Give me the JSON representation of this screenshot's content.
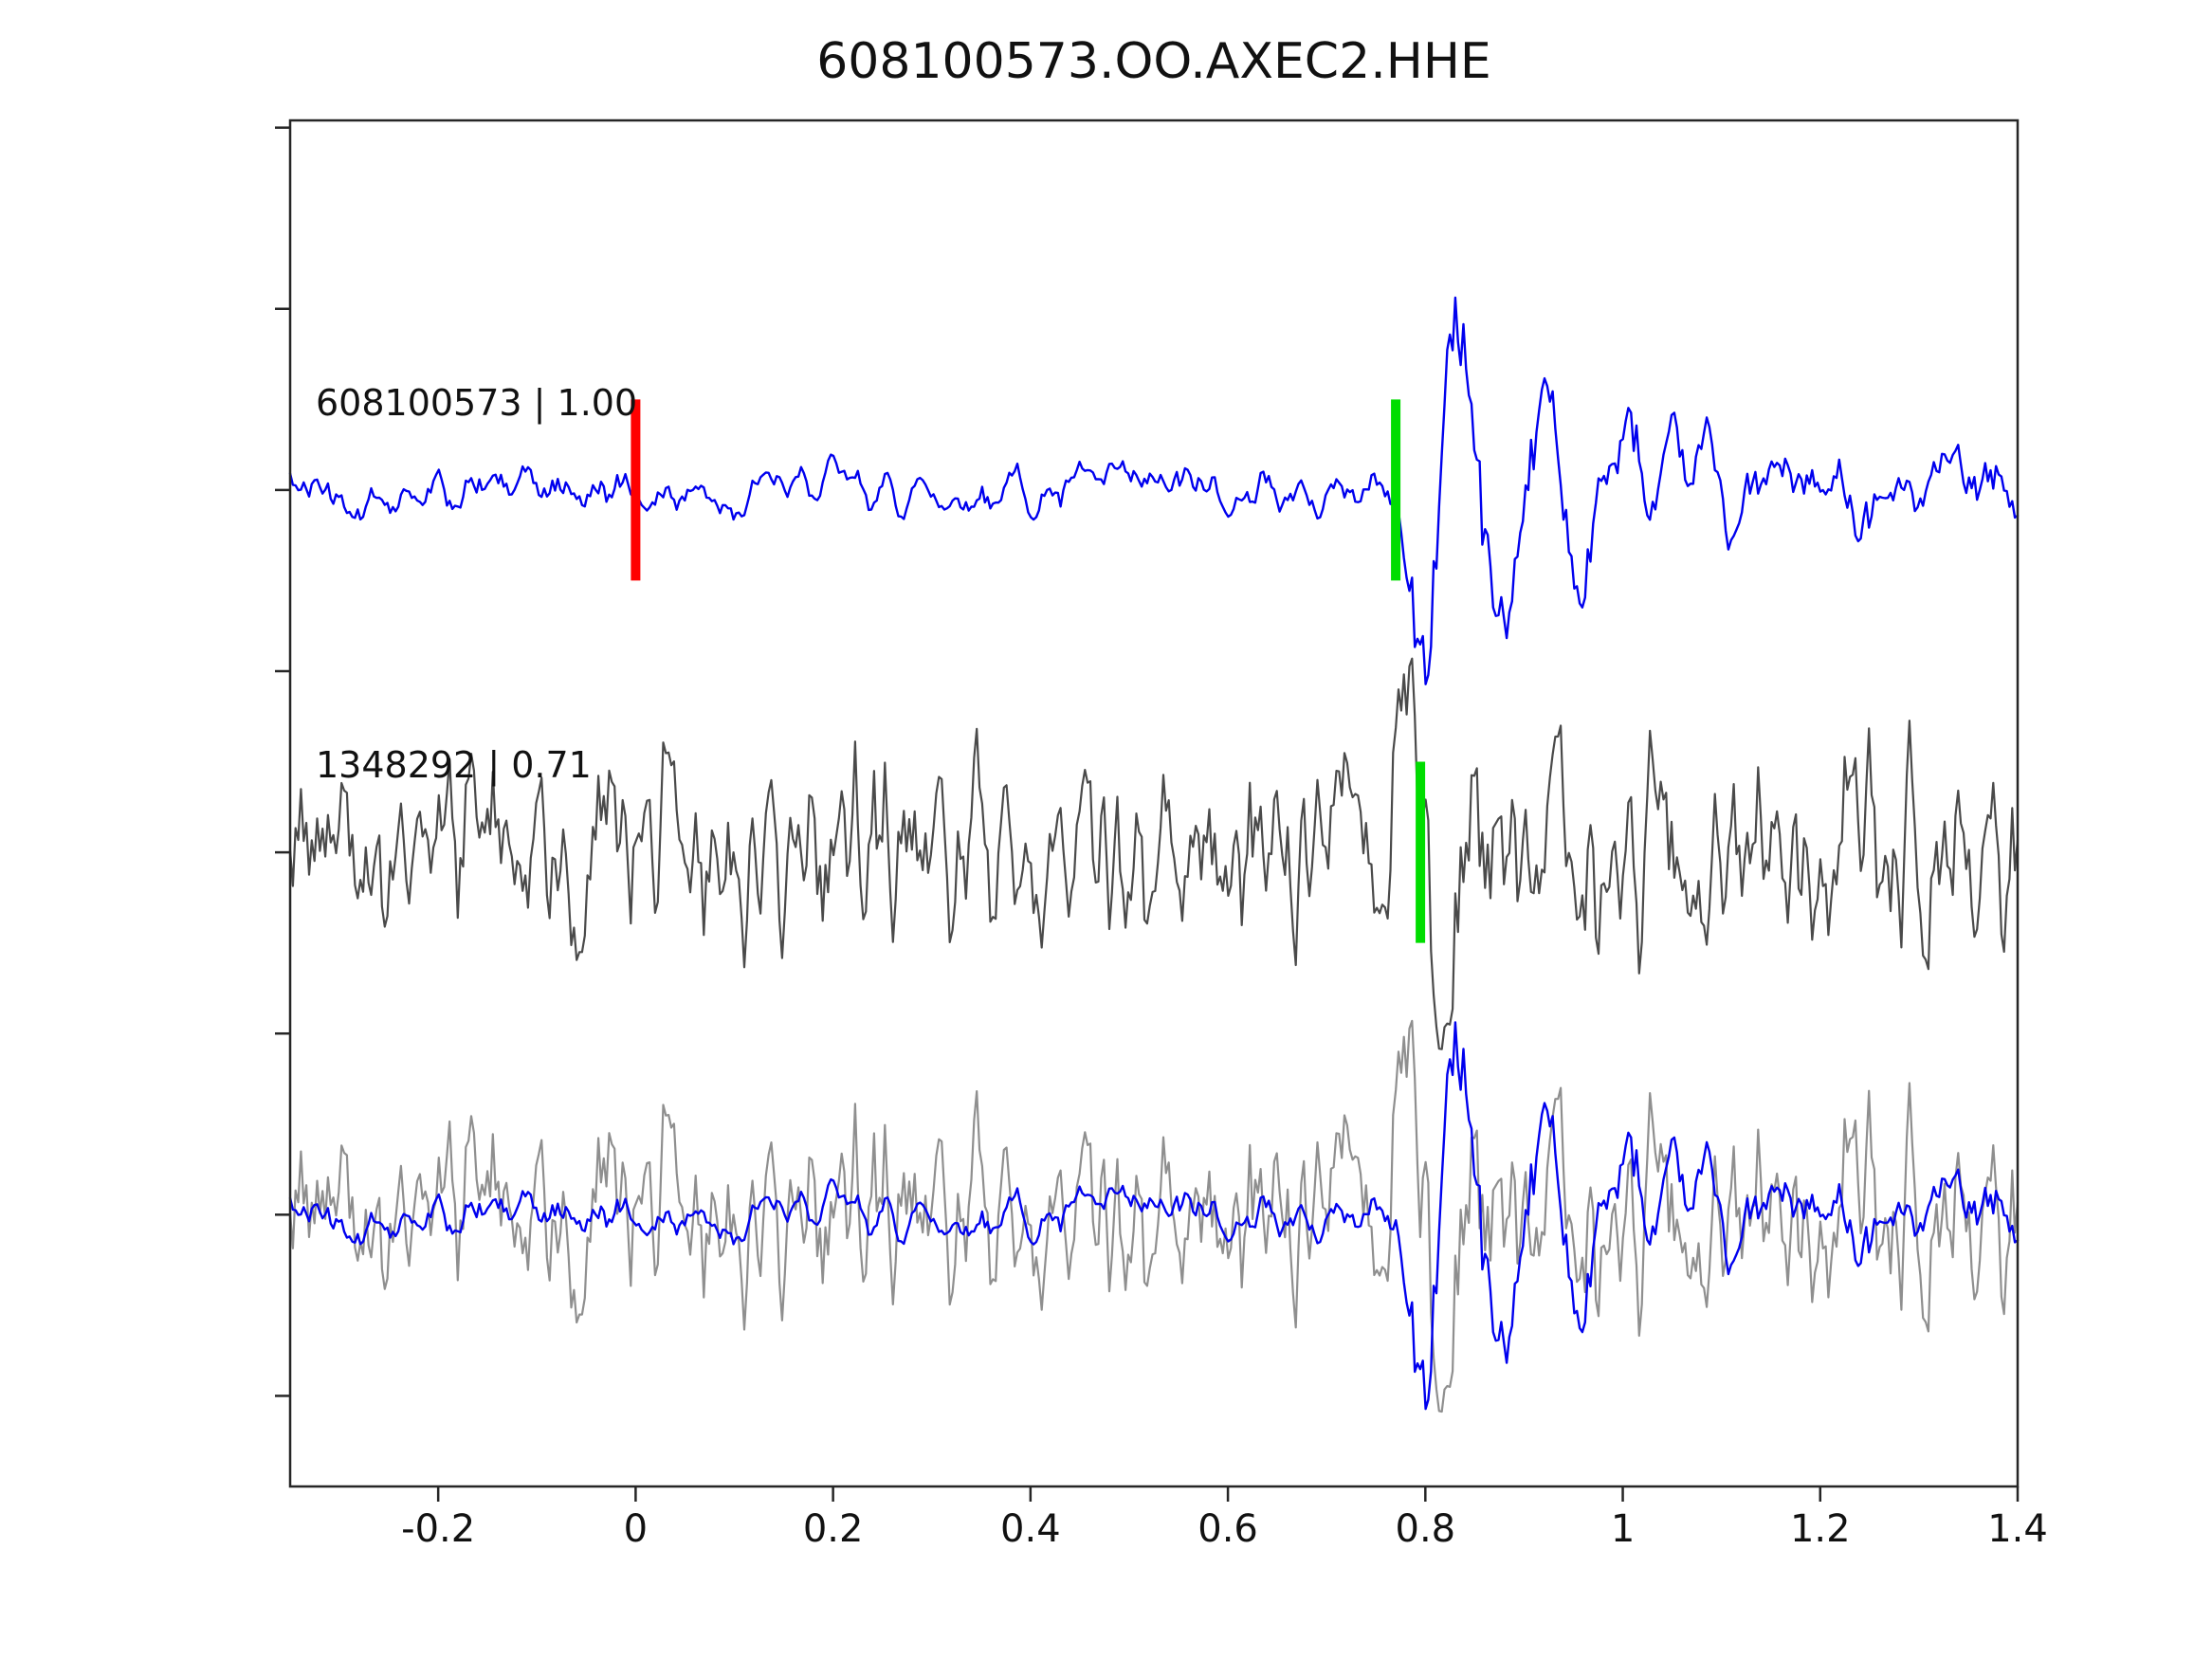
{
  "figure": {
    "background": "#ffffff",
    "spine_color": "#262626",
    "text_color": "#111111"
  },
  "chart_data": {
    "type": "line",
    "title": "608100573.OO.AXEC2.HHE",
    "xlabel": "",
    "ylabel": "",
    "xlim": [
      -0.35,
      1.4
    ],
    "ylim": [
      -0.75,
      3.02
    ],
    "xticks": [
      -0.2,
      0,
      0.2,
      0.4,
      0.6,
      0.8,
      1,
      1.2,
      1.4
    ],
    "xtick_labels": [
      "-0.2",
      "0",
      "0.2",
      "0.4",
      "0.6",
      "0.8",
      "1",
      "1.2",
      "1.4"
    ],
    "yticks": [
      -0.5,
      0,
      0.5,
      1,
      1.5,
      2,
      2.5,
      3
    ],
    "ytick_labels": [],
    "grid": false,
    "legend_position": "none",
    "rows": [
      {
        "baseline_value": 2,
        "label": "608100573 | 1.00"
      },
      {
        "baseline_value": 1,
        "label": "1348292 | 0.71"
      },
      {
        "baseline_value": 0,
        "label": ""
      }
    ],
    "pick_markers": [
      {
        "row": 0,
        "x": 0.0,
        "color": "#ff0000",
        "name": "template-origin-marker"
      },
      {
        "row": 0,
        "x": 0.77,
        "color": "#00dd00",
        "name": "detection-pick-marker-trace1"
      },
      {
        "row": 1,
        "x": 0.795,
        "color": "#00dd00",
        "name": "detection-pick-marker-trace2"
      }
    ],
    "marker_half_height": 0.25,
    "marker_stroke_width": 10,
    "series": [
      {
        "name": "608100573",
        "correlation": 1.0,
        "color": "#0000ee",
        "overlay_color": "#0000ee",
        "rows": [
          0,
          2
        ],
        "line_width": 2.4,
        "synth": {
          "seed": 42,
          "n": 640,
          "smooth": 3,
          "noise_amp": 14,
          "coda_amp": 46,
          "coda_decay": 0.28,
          "event_t0": 0.772,
          "freq": 12,
          "amp": 350,
          "rise": 0.02,
          "decay": 0.12,
          "polarity": -1
        }
      },
      {
        "name": "1348292",
        "correlation": 0.71,
        "color": "#4a4a4a",
        "overlay_color": "#8f8f8f",
        "rows": [
          1,
          2
        ],
        "line_width": 2.2,
        "synth": {
          "seed": 9,
          "n": 640,
          "smooth": 1,
          "noise_amp": 48,
          "coda_amp": 22,
          "coda_decay": 0.2,
          "event_t0": 0.762,
          "freq": 13,
          "amp": 360,
          "rise": 0.015,
          "decay": 0.06,
          "polarity": 1
        }
      }
    ]
  }
}
